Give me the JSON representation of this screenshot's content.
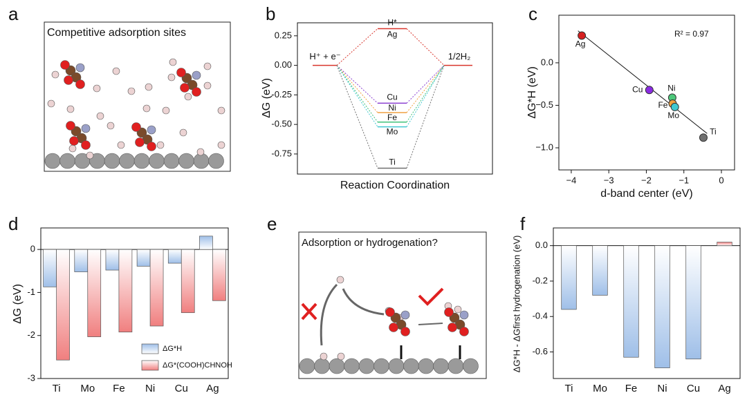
{
  "panel_a": {
    "letter": "a",
    "title": "Competitive adsorption sites"
  },
  "panel_e": {
    "letter": "e",
    "title": "Adsorption or hydrogenation?"
  },
  "chart_data": [
    {
      "type": "step",
      "panel": "b",
      "ylabel": "ΔG (eV)",
      "xlabel": "Reaction Coordination",
      "ylim": [
        -0.92,
        0.36
      ],
      "yticks": [
        {
          "value": 0.25,
          "label": "0.25"
        },
        {
          "value": 0,
          "label": "0.00"
        },
        -0.25,
        {
          "value": -0.5,
          "label": "-0.50"
        },
        -0.75
      ],
      "start_label": "H⁺ + e⁻",
      "start_value": 0,
      "end_label": "1/2H₂",
      "end_value": 0,
      "intermediate_label": "H*",
      "level_color": "#d9342b",
      "series": [
        {
          "name": "Ag",
          "color": "#d9342b",
          "values": [
            0.31
          ]
        },
        {
          "name": "Cu",
          "color": "#8a3fd1",
          "values": [
            -0.32
          ]
        },
        {
          "name": "Ni",
          "color": "#f0a040",
          "values": [
            -0.4
          ]
        },
        {
          "name": "Fe",
          "color": "#3fc27a",
          "values": [
            -0.48
          ]
        },
        {
          "name": "Mo",
          "color": "#40c8d0",
          "values": [
            -0.52
          ]
        },
        {
          "name": "Ti",
          "color": "#707070",
          "values": [
            -0.87
          ]
        }
      ]
    },
    {
      "type": "scatter",
      "panel": "c",
      "xlabel": "d-band center (eV)",
      "ylabel": "ΔG*H (eV)",
      "annotation": "R² = 0.97",
      "categories": [
        "Ag",
        "Cu",
        "Ni",
        "Fe",
        "Mo",
        "Ti"
      ],
      "x": [
        -3.72,
        -1.92,
        -1.31,
        -1.3,
        -1.24,
        -0.48
      ],
      "values": [
        0.32,
        -0.32,
        -0.41,
        -0.48,
        -0.52,
        -0.88
      ],
      "colors": [
        "#d62020",
        "#8a2be2",
        "#4cc87a",
        "#f0a040",
        "#40c8d0",
        "#707070"
      ],
      "xlim": [
        -4.33,
        0.35
      ],
      "xticks": [
        {
          "value": -4,
          "label": "−4"
        },
        {
          "value": -3,
          "label": "−3"
        },
        {
          "value": -2,
          "label": "−2"
        },
        {
          "value": -1,
          "label": "−1"
        },
        0
      ],
      "ylim": [
        -1.26,
        0.56
      ],
      "yticks": [
        {
          "value": 0,
          "label": "0.0"
        },
        {
          "value": -0.5,
          "label": "−0.5"
        },
        {
          "value": -1,
          "label": "−1.0"
        }
      ]
    },
    {
      "type": "bar",
      "panel": "d",
      "ylabel": "ΔG (eV)",
      "categories": [
        "Ti",
        "Mo",
        "Fe",
        "Ni",
        "Cu",
        "Ag"
      ],
      "series": [
        {
          "name": "ΔG*H",
          "color": "#9fbfe8",
          "values": [
            -0.87,
            -0.52,
            -0.48,
            -0.39,
            -0.32,
            0.31
          ]
        },
        {
          "name": "ΔG*(COOH)CHNOH",
          "color": "#f07f7f",
          "values": [
            -2.57,
            -2.03,
            -1.92,
            -1.78,
            -1.47,
            -1.19
          ]
        }
      ],
      "ylim": [
        -3,
        0.5
      ],
      "yticks": [
        0,
        -1,
        -2,
        -3
      ]
    },
    {
      "type": "bar",
      "panel": "f",
      "ylabel": "ΔG*H - ΔGfirst hydrogenation (eV)",
      "categories": [
        "Ti",
        "Mo",
        "Fe",
        "Ni",
        "Cu",
        "Ag"
      ],
      "values": [
        -0.36,
        -0.28,
        -0.63,
        -0.69,
        -0.64,
        0.02
      ],
      "colors": [
        "#9fbfe8",
        "#9fbfe8",
        "#9fbfe8",
        "#9fbfe8",
        "#9fbfe8",
        "#f07f7f"
      ],
      "ylim": [
        -0.75,
        0.1
      ],
      "yticks": [
        {
          "value": 0,
          "label": "0.0"
        },
        -0.2,
        -0.4,
        -0.6
      ]
    }
  ]
}
